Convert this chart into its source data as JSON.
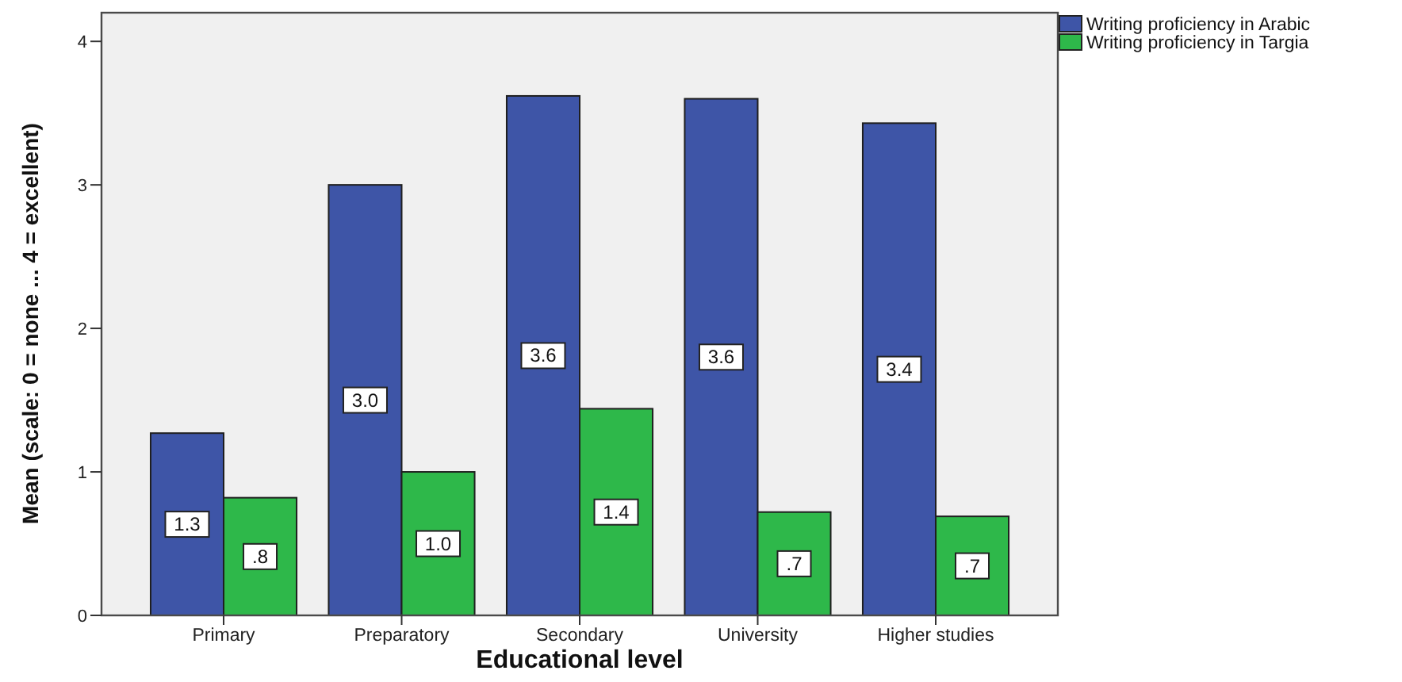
{
  "chart_data": {
    "type": "bar",
    "xlabel": "Educational level",
    "ylabel": "Mean (scale: 0 = none ... 4 = excellent)",
    "categories": [
      "Primary",
      "Preparatory",
      "Secondary",
      "University",
      "Higher studies"
    ],
    "series": [
      {
        "name": "Writing proficiency in Arabic",
        "color": "#3e55a7",
        "values": [
          1.27,
          3.0,
          3.62,
          3.6,
          3.43
        ],
        "value_labels": [
          "1.3",
          "3.0",
          "3.6",
          "3.6",
          "3.4"
        ]
      },
      {
        "name": "Writing proficiency in Targia",
        "color": "#2eb84a",
        "values": [
          0.82,
          1.0,
          1.44,
          0.72,
          0.69
        ],
        "value_labels": [
          ".8",
          "1.0",
          "1.4",
          ".7",
          ".7"
        ]
      }
    ],
    "ylim": [
      0,
      4.2
    ],
    "yticks": [
      0,
      1,
      2,
      3,
      4
    ],
    "legend": "top right"
  }
}
